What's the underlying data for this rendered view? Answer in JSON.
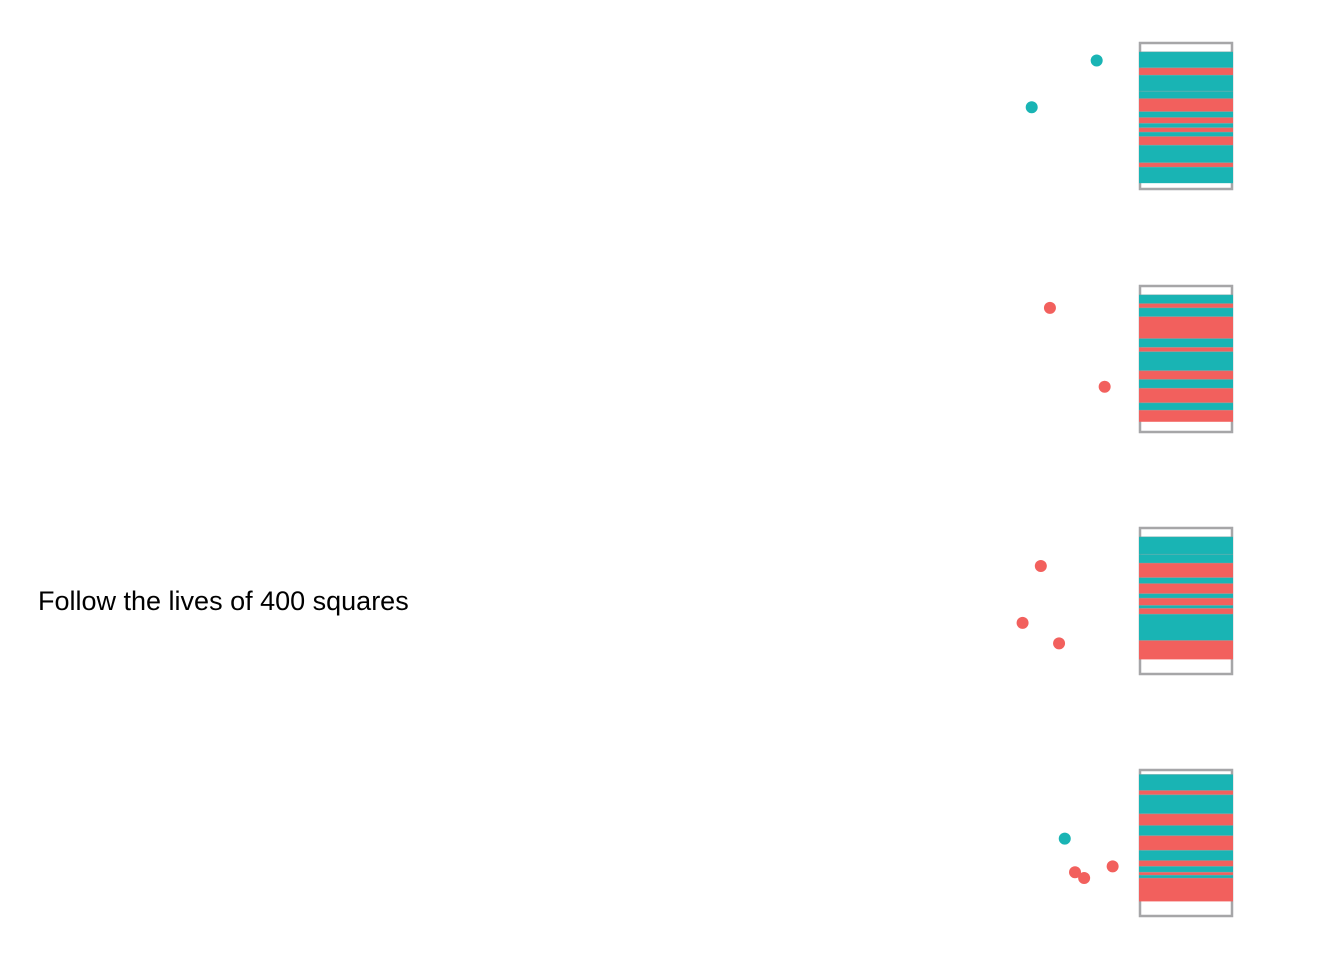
{
  "caption": "Follow the lives of 400 squares",
  "colors": {
    "teal": "#19b4b4",
    "red": "#f2605d",
    "frame": "#a6a6a8",
    "divider": "#8a9f9f"
  },
  "chart_data": {
    "type": "strip-simulation",
    "title": "Follow the lives of 400 squares",
    "y_axis": "position within each panel, 0 = top of container, 1 = bottom of container",
    "x_axis": "horizontal position of a falling square, 0 = left plot edge, 1 = container left edge",
    "panels": [
      {
        "id": 1,
        "fill_level": 0.9,
        "bands": [
          {
            "y0": 0.06,
            "y1": 0.17,
            "color": "teal"
          },
          {
            "y0": 0.17,
            "y1": 0.22,
            "color": "red"
          },
          {
            "y0": 0.22,
            "y1": 0.33,
            "color": "teal"
          },
          {
            "y0": 0.33,
            "y1": 0.38,
            "color": "teal"
          },
          {
            "y0": 0.38,
            "y1": 0.47,
            "color": "red"
          },
          {
            "y0": 0.47,
            "y1": 0.51,
            "color": "teal"
          },
          {
            "y0": 0.51,
            "y1": 0.55,
            "color": "red"
          },
          {
            "y0": 0.55,
            "y1": 0.58,
            "color": "teal"
          },
          {
            "y0": 0.58,
            "y1": 0.61,
            "color": "red"
          },
          {
            "y0": 0.61,
            "y1": 0.64,
            "color": "teal"
          },
          {
            "y0": 0.64,
            "y1": 0.7,
            "color": "red"
          },
          {
            "y0": 0.7,
            "y1": 0.82,
            "color": "teal"
          },
          {
            "y0": 0.82,
            "y1": 0.85,
            "color": "red"
          },
          {
            "y0": 0.85,
            "y1": 0.96,
            "color": "teal"
          }
        ],
        "dots": [
          {
            "x": 0.962,
            "y": 0.12,
            "color": "teal"
          },
          {
            "x": 0.905,
            "y": 0.44,
            "color": "teal"
          }
        ]
      },
      {
        "id": 2,
        "fill_level": 0.92,
        "bands": [
          {
            "y0": 0.06,
            "y1": 0.12,
            "color": "teal"
          },
          {
            "y0": 0.12,
            "y1": 0.15,
            "color": "red"
          },
          {
            "y0": 0.15,
            "y1": 0.21,
            "color": "teal"
          },
          {
            "y0": 0.21,
            "y1": 0.36,
            "color": "red"
          },
          {
            "y0": 0.36,
            "y1": 0.42,
            "color": "teal"
          },
          {
            "y0": 0.42,
            "y1": 0.45,
            "color": "red"
          },
          {
            "y0": 0.45,
            "y1": 0.58,
            "color": "teal"
          },
          {
            "y0": 0.58,
            "y1": 0.64,
            "color": "red"
          },
          {
            "y0": 0.64,
            "y1": 0.7,
            "color": "teal"
          },
          {
            "y0": 0.7,
            "y1": 0.8,
            "color": "red"
          },
          {
            "y0": 0.8,
            "y1": 0.85,
            "color": "teal"
          },
          {
            "y0": 0.85,
            "y1": 0.93,
            "color": "red"
          }
        ],
        "dots": [
          {
            "x": 0.921,
            "y": 0.15,
            "color": "red"
          },
          {
            "x": 0.969,
            "y": 0.69,
            "color": "red"
          }
        ]
      },
      {
        "id": 3,
        "fill_level": 0.9,
        "bands": [
          {
            "y0": 0.06,
            "y1": 0.18,
            "color": "teal"
          },
          {
            "y0": 0.18,
            "y1": 0.24,
            "color": "teal"
          },
          {
            "y0": 0.24,
            "y1": 0.34,
            "color": "red"
          },
          {
            "y0": 0.34,
            "y1": 0.38,
            "color": "teal"
          },
          {
            "y0": 0.38,
            "y1": 0.45,
            "color": "red"
          },
          {
            "y0": 0.45,
            "y1": 0.48,
            "color": "teal"
          },
          {
            "y0": 0.48,
            "y1": 0.53,
            "color": "red"
          },
          {
            "y0": 0.53,
            "y1": 0.55,
            "color": "teal"
          },
          {
            "y0": 0.55,
            "y1": 0.59,
            "color": "red"
          },
          {
            "y0": 0.59,
            "y1": 0.77,
            "color": "teal"
          },
          {
            "y0": 0.77,
            "y1": 0.9,
            "color": "red"
          }
        ],
        "dots": [
          {
            "x": 0.913,
            "y": 0.26,
            "color": "red"
          },
          {
            "x": 0.897,
            "y": 0.65,
            "color": "red"
          },
          {
            "x": 0.929,
            "y": 0.79,
            "color": "red"
          }
        ]
      },
      {
        "id": 4,
        "fill_level": 0.9,
        "bands": [
          {
            "y0": 0.03,
            "y1": 0.14,
            "color": "teal"
          },
          {
            "y0": 0.14,
            "y1": 0.17,
            "color": "red"
          },
          {
            "y0": 0.17,
            "y1": 0.3,
            "color": "teal"
          },
          {
            "y0": 0.3,
            "y1": 0.38,
            "color": "red"
          },
          {
            "y0": 0.38,
            "y1": 0.45,
            "color": "teal"
          },
          {
            "y0": 0.45,
            "y1": 0.55,
            "color": "red"
          },
          {
            "y0": 0.55,
            "y1": 0.62,
            "color": "teal"
          },
          {
            "y0": 0.62,
            "y1": 0.66,
            "color": "red"
          },
          {
            "y0": 0.66,
            "y1": 0.7,
            "color": "teal"
          },
          {
            "y0": 0.7,
            "y1": 0.72,
            "color": "red"
          },
          {
            "y0": 0.72,
            "y1": 0.74,
            "color": "teal"
          },
          {
            "y0": 0.74,
            "y1": 0.9,
            "color": "red"
          }
        ],
        "dots": [
          {
            "x": 0.934,
            "y": 0.47,
            "color": "teal"
          },
          {
            "x": 0.943,
            "y": 0.7,
            "color": "red"
          },
          {
            "x": 0.951,
            "y": 0.74,
            "color": "red"
          },
          {
            "x": 0.976,
            "y": 0.66,
            "color": "red"
          }
        ]
      }
    ]
  }
}
